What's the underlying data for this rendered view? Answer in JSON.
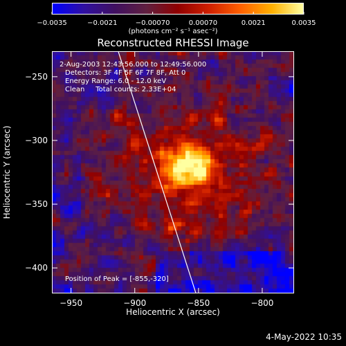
{
  "colorbar": {
    "ticks": [
      "-0.0035",
      "-0.0021",
      "-0.00070",
      "0.00070",
      "0.0021",
      "0.0035"
    ],
    "units": "(photons cm⁻² s⁻¹ asec⁻²)",
    "colormap": [
      "#0000ff",
      "#3010a0",
      "#401060",
      "#602040",
      "#900000",
      "#d02000",
      "#ff6000",
      "#ffb000",
      "#ffffa0"
    ]
  },
  "chart_data": {
    "type": "heatmap",
    "title": "Reconstructed RHESSI Image",
    "xlabel": "Heliocentric X (arcsec)",
    "ylabel": "Heliocentric Y (arcsec)",
    "xticks": [
      -950,
      -900,
      -850,
      -800
    ],
    "yticks": [
      -250,
      -300,
      -350,
      -400
    ],
    "xlim": [
      -965,
      -775
    ],
    "ylim": [
      -420,
      -230
    ],
    "color_range": [
      -0.0035,
      0.0035
    ],
    "peak": {
      "x": -855,
      "y": -320
    },
    "limb_line": [
      [
        -913,
        -230
      ],
      [
        -852,
        -420
      ]
    ],
    "annotations": {
      "time": "2-Aug-2003 12:43:56.000 to 12:49:56.000",
      "detectors": "Detectors: 3F 4F 5F 6F 7F 8F, Att 0",
      "energy": "Energy Range: 6.0 - 12.0 keV",
      "clean": "Clean     Total counts: 2.33E+04",
      "peak_text": "Position of Peak = [-855,-320]"
    }
  },
  "footer": "4-May-2022 10:35"
}
